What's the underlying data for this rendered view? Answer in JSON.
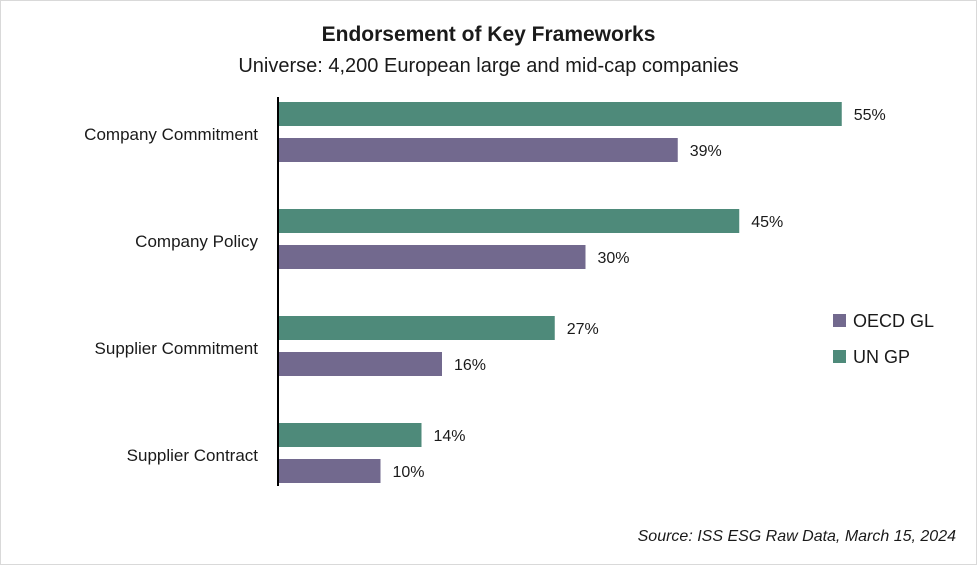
{
  "chart_data": {
    "type": "bar",
    "orientation": "horizontal",
    "title": "Endorsement of Key Frameworks",
    "subtitle": "Universe: 4,200  European large and mid-cap companies",
    "categories": [
      "Company Commitment",
      "Company Policy",
      "Supplier Commitment",
      "Supplier Contract"
    ],
    "series": [
      {
        "name": "UN GP",
        "color": "#4e8a7a",
        "values": [
          55,
          45,
          27,
          14
        ]
      },
      {
        "name": "OECD GL",
        "color": "#72698e",
        "values": [
          39,
          30,
          16,
          10
        ]
      }
    ],
    "value_suffix": "%",
    "legend": {
      "position": "right",
      "order": [
        "OECD GL",
        "UN GP"
      ]
    },
    "grid": false,
    "source": "Source: ISS ESG Raw Data, March 15, 2024"
  }
}
